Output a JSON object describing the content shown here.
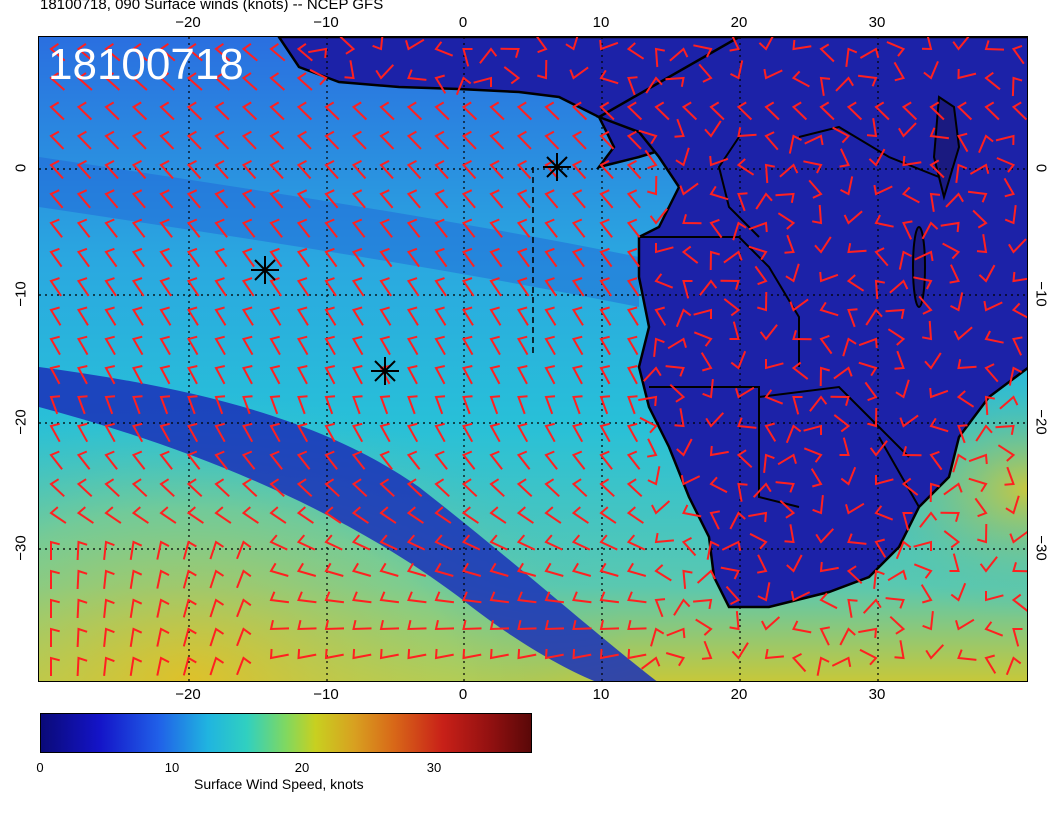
{
  "header": {
    "title": "18100718, 090 Surface winds (knots) -- NCEP GFS",
    "timestamp": "18100718"
  },
  "map": {
    "lon_ticks": [
      "−20",
      "−10",
      "0",
      "10",
      "20",
      "30"
    ],
    "lat_ticks": [
      "0",
      "−10",
      "−20",
      "−30"
    ],
    "marker": "asterisk",
    "colors": {
      "ocean_low": "#1a2bb0",
      "ocean_mid": "#2a8fe0",
      "ocean_high": "#d8c830",
      "land": "#1c22a8",
      "barb": "#ff2020",
      "coast": "#000000"
    }
  },
  "colorbar": {
    "ticks": [
      "0",
      "10",
      "20",
      "30"
    ],
    "label": "Surface Wind Speed, knots",
    "range": [
      0,
      37
    ],
    "colormap": "jet-like"
  }
}
